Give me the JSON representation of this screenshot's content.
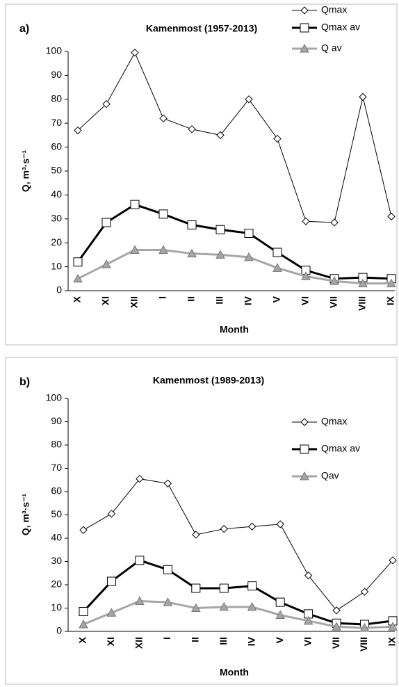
{
  "chart_data": [
    {
      "type": "line",
      "panel_label": "a)",
      "title": "Kamenmost (1957-2013)",
      "x_label": "Month",
      "y_label": "Q, m³·s⁻¹",
      "categories": [
        "X",
        "XI",
        "XII",
        "I",
        "II",
        "III",
        "IV",
        "V",
        "VI",
        "VII",
        "VIII",
        "IX"
      ],
      "series": [
        {
          "name": "Qmax",
          "color": "#000000",
          "marker": "diamond",
          "line_width": 1,
          "values": [
            67,
            78,
            99.5,
            72,
            67.5,
            65,
            80,
            63.5,
            29,
            28.5,
            81,
            31
          ]
        },
        {
          "name": "Qmax av",
          "color": "#000000",
          "marker": "square",
          "line_width": 3,
          "values": [
            12,
            28.5,
            36,
            32,
            27.5,
            25.5,
            24,
            16,
            8.5,
            5,
            5.5,
            5
          ]
        },
        {
          "name": "Q av",
          "color": "#a6a6a6",
          "marker": "triangle",
          "line_width": 3,
          "values": [
            5,
            11,
            17,
            17,
            15.5,
            15,
            14,
            9.5,
            6,
            4,
            3,
            3
          ]
        }
      ],
      "ylim": [
        0,
        100
      ],
      "yticks": [
        0,
        10,
        20,
        30,
        40,
        50,
        60,
        70,
        80,
        90,
        100
      ],
      "grid": false,
      "legend": "top-right"
    },
    {
      "type": "line",
      "panel_label": "b)",
      "title": "Kamenmost (1989-2013)",
      "x_label": "Month",
      "y_label": "Q, m³·s⁻¹",
      "categories": [
        "X",
        "XI",
        "XII",
        "I",
        "II",
        "III",
        "IV",
        "V",
        "VI",
        "VII",
        "VIII",
        "IX"
      ],
      "series": [
        {
          "name": "Qmax",
          "color": "#000000",
          "marker": "diamond",
          "line_width": 1,
          "values": [
            43.5,
            50.5,
            65.5,
            63.5,
            41.5,
            44,
            45,
            46,
            24,
            9,
            17,
            30.5
          ]
        },
        {
          "name": "Qmax av",
          "color": "#000000",
          "marker": "square",
          "line_width": 3,
          "values": [
            8.5,
            21.5,
            30.5,
            26.5,
            18.5,
            18.5,
            19.5,
            12.5,
            7.5,
            3.5,
            3,
            4.5
          ]
        },
        {
          "name": "Qav",
          "color": "#a6a6a6",
          "marker": "triangle",
          "line_width": 3,
          "values": [
            3,
            8,
            13,
            12.5,
            10,
            10.5,
            10.5,
            7,
            4.5,
            2,
            1.5,
            2
          ]
        }
      ],
      "ylim": [
        0,
        100
      ],
      "yticks": [
        0,
        10,
        20,
        30,
        40,
        50,
        60,
        70,
        80,
        90,
        100
      ],
      "grid": false,
      "legend": "right"
    }
  ]
}
